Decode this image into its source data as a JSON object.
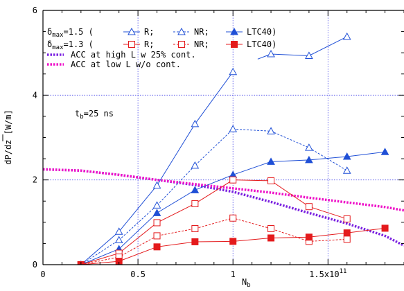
{
  "chart_data": {
    "type": "line",
    "xlabel": "N",
    "xlabel_sub": "b",
    "ylabel": "dP/dz [W/m]",
    "xlim": [
      0,
      1.9
    ],
    "ylim": [
      0,
      6
    ],
    "x_tick_values": [
      0,
      0.5,
      1,
      1.5
    ],
    "x_tick_labels": [
      "0",
      "0.5",
      "1",
      "1.5x10"
    ],
    "x_tick_exponent": "11",
    "y_tick_values": [
      0,
      2,
      4,
      6
    ],
    "y_tick_labels": [
      "0",
      "2",
      "4",
      "6"
    ],
    "grid": true,
    "legend_position": "top-left",
    "annotation": {
      "main": "t",
      "sub": "b",
      "rest": "=25 ns",
      "x": 0.18,
      "y": 3.6
    },
    "legend_groups": [
      {
        "prefix_main": "δ",
        "prefix_sub": "max",
        "prefix_rest": "=1.5 (",
        "color": "#1f4fd6",
        "items": [
          {
            "marker": "triangle-open",
            "line": "solid",
            "label": "R;"
          },
          {
            "marker": "triangle-open",
            "line": "dashed",
            "label": "NR;"
          },
          {
            "marker": "triangle-filled",
            "line": "solid",
            "label": "LTC40)"
          }
        ]
      },
      {
        "prefix_main": "δ",
        "prefix_sub": "max",
        "prefix_rest": "=1.3 (",
        "color": "#e41a1c",
        "items": [
          {
            "marker": "square-open",
            "line": "solid",
            "label": "R;"
          },
          {
            "marker": "square-open",
            "line": "dashed",
            "label": "NR;"
          },
          {
            "marker": "square-filled",
            "line": "solid",
            "label": "LTC40)"
          }
        ]
      }
    ],
    "legend_lines": [
      {
        "color": "#7b22e0",
        "label": "ACC at high L w 25% cont."
      },
      {
        "color": "#ee10c8",
        "label": "ACC at low L w/o cont."
      }
    ],
    "series": [
      {
        "group": "1.5",
        "kind": "R",
        "color": "#1f4fd6",
        "marker": "triangle-open",
        "line": "solid",
        "x": [
          0.2,
          0.4,
          0.6,
          0.8,
          1.0
        ],
        "y": [
          0.0,
          0.78,
          1.87,
          3.32,
          4.55
        ]
      },
      {
        "group": "1.5",
        "kind": "R",
        "color": "#1f4fd6",
        "marker": "triangle-open",
        "line": "solid",
        "x": [
          1.2,
          1.4,
          1.6
        ],
        "y": [
          4.97,
          4.93,
          5.38
        ],
        "lead_in": [
          1.13,
          4.85
        ]
      },
      {
        "group": "1.5",
        "kind": "NR",
        "color": "#1f4fd6",
        "marker": "triangle-open",
        "line": "dashed",
        "x": [
          0.2,
          0.4,
          0.6,
          0.8,
          1.0,
          1.2,
          1.4,
          1.6
        ],
        "y": [
          0.0,
          0.58,
          1.4,
          2.34,
          3.2,
          3.15,
          2.76,
          2.22
        ]
      },
      {
        "group": "1.5",
        "kind": "LTC40",
        "color": "#1f4fd6",
        "marker": "triangle-filled",
        "line": "solid",
        "x": [
          0.2,
          0.4,
          0.6,
          0.8,
          1.0,
          1.2,
          1.4,
          1.6,
          1.8
        ],
        "y": [
          0.0,
          0.37,
          1.22,
          1.76,
          2.12,
          2.43,
          2.47,
          2.55,
          2.66
        ]
      },
      {
        "group": "1.3",
        "kind": "R",
        "color": "#e41a1c",
        "marker": "square-open",
        "line": "solid",
        "x": [
          0.2,
          0.4,
          0.6,
          0.8,
          1.0,
          1.2,
          1.4,
          1.6
        ],
        "y": [
          0.0,
          0.27,
          0.99,
          1.44,
          2.0,
          1.98,
          1.37,
          1.08
        ]
      },
      {
        "group": "1.3",
        "kind": "NR",
        "color": "#e41a1c",
        "marker": "square-open",
        "line": "dashed",
        "x": [
          0.2,
          0.4,
          0.6,
          0.8,
          1.0,
          1.2,
          1.4,
          1.6
        ],
        "y": [
          0.0,
          0.18,
          0.68,
          0.85,
          1.1,
          0.85,
          0.55,
          0.6
        ]
      },
      {
        "group": "1.3",
        "kind": "LTC40",
        "color": "#e41a1c",
        "marker": "square-filled",
        "line": "solid",
        "x": [
          0.2,
          0.4,
          0.6,
          0.8,
          1.0,
          1.2,
          1.4,
          1.6,
          1.8
        ],
        "y": [
          0.0,
          0.08,
          0.42,
          0.54,
          0.55,
          0.63,
          0.65,
          0.75,
          0.86
        ]
      }
    ],
    "acc_curves": [
      {
        "label": "ACC at high L w 25% cont.",
        "color": "#7b22e0",
        "x": [
          0.0,
          0.2,
          0.4,
          0.6,
          0.8,
          1.0,
          1.2,
          1.4,
          1.6,
          1.8,
          1.9
        ],
        "y": [
          2.25,
          2.22,
          2.12,
          2.0,
          1.88,
          1.72,
          1.48,
          1.22,
          0.97,
          0.68,
          0.45
        ]
      },
      {
        "label": "ACC at low L w/o cont.",
        "color": "#ee10c8",
        "x": [
          0.0,
          0.2,
          0.4,
          0.6,
          0.8,
          1.0,
          1.2,
          1.4,
          1.6,
          1.8,
          1.9
        ],
        "y": [
          2.25,
          2.22,
          2.12,
          2.0,
          1.9,
          1.8,
          1.7,
          1.58,
          1.47,
          1.36,
          1.28
        ]
      }
    ]
  }
}
